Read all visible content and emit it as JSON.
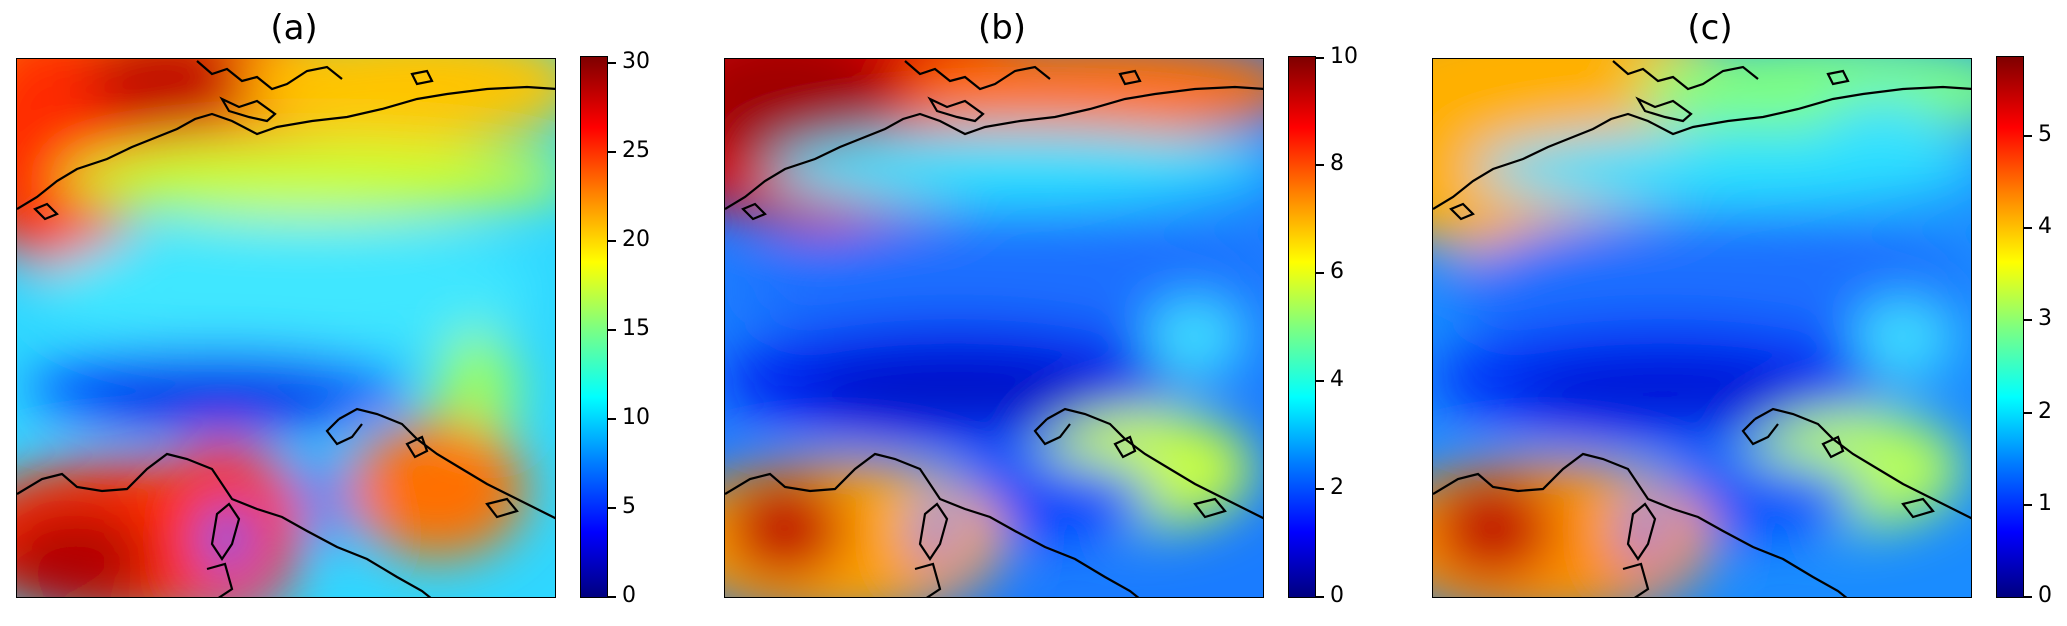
{
  "panels": [
    {
      "title": "(a)",
      "colorbar": {
        "min": 0,
        "max": 30.5,
        "ticks": [
          "0",
          "5",
          "10",
          "15",
          "20",
          "25",
          "30"
        ],
        "tick_values": [
          0,
          5,
          10,
          15,
          20,
          25,
          30
        ]
      },
      "palette": "jet"
    },
    {
      "title": "(b)",
      "colorbar": {
        "min": 0,
        "max": 10,
        "ticks": [
          "0",
          "2",
          "4",
          "6",
          "8",
          "10"
        ],
        "tick_values": [
          0,
          2,
          4,
          6,
          8,
          10
        ]
      },
      "palette": "jet"
    },
    {
      "title": "(c)",
      "colorbar": {
        "min": 0,
        "max": 5.85,
        "ticks": [
          "0",
          "1",
          "2",
          "3",
          "4",
          "5"
        ],
        "tick_values": [
          0,
          1,
          2,
          3,
          4,
          5
        ]
      },
      "palette": "jet"
    }
  ],
  "colors": {
    "jet_stops": [
      "#00007f",
      "#0000ff",
      "#007fff",
      "#00ffff",
      "#7fff7f",
      "#ffff00",
      "#ff7f00",
      "#ff0000",
      "#7f0000"
    ],
    "coastline": "#000000"
  }
}
